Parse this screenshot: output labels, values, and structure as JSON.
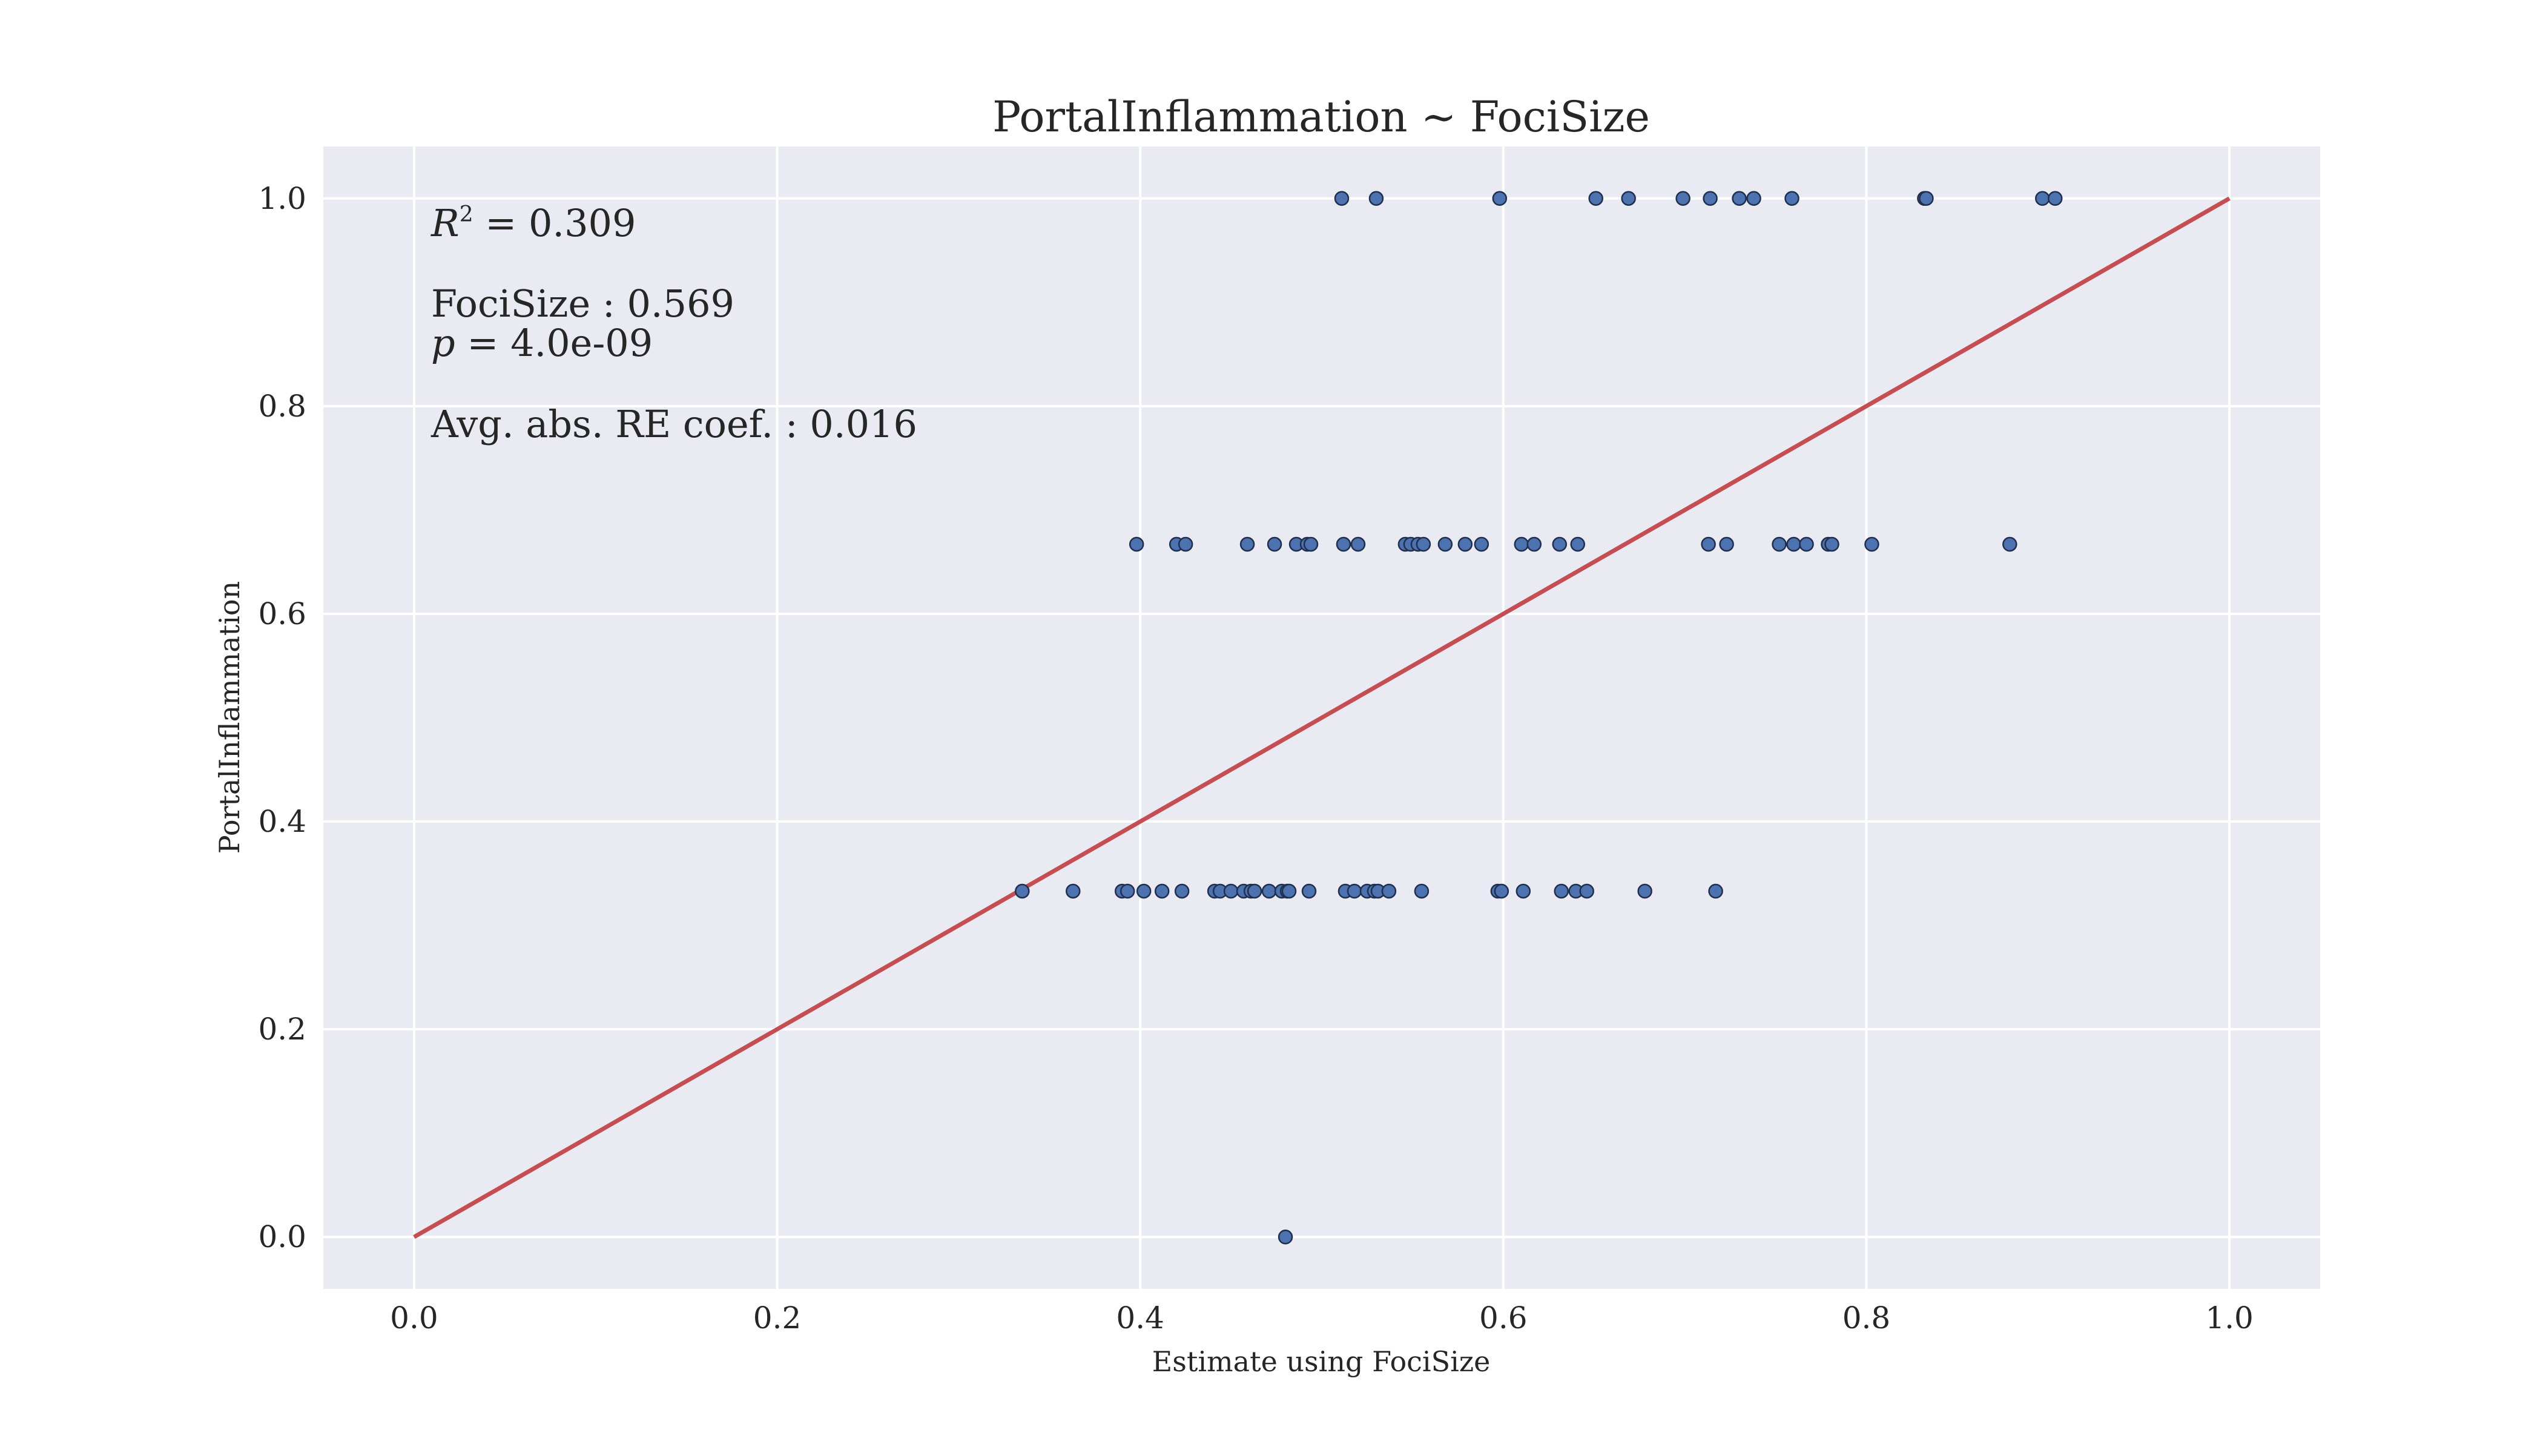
{
  "chart_data": {
    "type": "scatter",
    "title": "PortalInflammation ~ FociSize",
    "xlabel": "Estimate using FociSize",
    "ylabel": "PortalInflammation",
    "xlim": [
      -0.05,
      1.05
    ],
    "ylim": [
      -0.05,
      1.05
    ],
    "xticks": [
      "0.0",
      "0.2",
      "0.4",
      "0.6",
      "0.8",
      "1.0"
    ],
    "yticks": [
      "0.0",
      "0.2",
      "0.4",
      "0.6",
      "0.8",
      "1.0"
    ],
    "grid": true,
    "colors": {
      "background": "#eaeaf2",
      "grid": "#ffffff",
      "points": "#4c72b0",
      "line": "#c44e52"
    },
    "reference_line": {
      "x": [
        0.0,
        1.0
      ],
      "y": [
        0.0,
        1.0
      ]
    },
    "annotations": {
      "r2_label": "R",
      "r2_sup": "2",
      "r2_value": " = 0.309",
      "coef_line": "FociSize : 0.569",
      "p_label": "p",
      "p_value": " = 4.0e-09",
      "re_line": "Avg. abs. RE coef. : 0.016"
    },
    "series": [
      {
        "x": [
          0.48,
          0.335,
          0.363,
          0.39,
          0.393,
          0.402,
          0.412,
          0.423,
          0.441,
          0.444,
          0.45,
          0.457,
          0.461,
          0.463,
          0.471,
          0.478,
          0.481,
          0.482,
          0.493,
          0.513,
          0.518,
          0.525,
          0.529,
          0.531,
          0.537,
          0.555,
          0.597,
          0.599,
          0.611,
          0.632,
          0.64,
          0.646,
          0.678,
          0.717,
          0.398,
          0.42,
          0.425,
          0.459,
          0.474,
          0.486,
          0.492,
          0.494,
          0.512,
          0.52,
          0.546,
          0.549,
          0.553,
          0.556,
          0.568,
          0.579,
          0.588,
          0.61,
          0.617,
          0.631,
          0.641,
          0.713,
          0.723,
          0.752,
          0.76,
          0.767,
          0.779,
          0.781,
          0.803,
          0.879,
          0.511,
          0.53,
          0.598,
          0.651,
          0.669,
          0.699,
          0.714,
          0.73,
          0.738,
          0.759,
          0.832,
          0.833,
          0.897,
          0.904
        ],
        "y": [
          0.0,
          0.333,
          0.333,
          0.333,
          0.333,
          0.333,
          0.333,
          0.333,
          0.333,
          0.333,
          0.333,
          0.333,
          0.333,
          0.333,
          0.333,
          0.333,
          0.333,
          0.333,
          0.333,
          0.333,
          0.333,
          0.333,
          0.333,
          0.333,
          0.333,
          0.333,
          0.333,
          0.333,
          0.333,
          0.333,
          0.333,
          0.333,
          0.333,
          0.333,
          0.667,
          0.667,
          0.667,
          0.667,
          0.667,
          0.667,
          0.667,
          0.667,
          0.667,
          0.667,
          0.667,
          0.667,
          0.667,
          0.667,
          0.667,
          0.667,
          0.667,
          0.667,
          0.667,
          0.667,
          0.667,
          0.667,
          0.667,
          0.667,
          0.667,
          0.667,
          0.667,
          0.667,
          0.667,
          0.667,
          1.0,
          1.0,
          1.0,
          1.0,
          1.0,
          1.0,
          1.0,
          1.0,
          1.0,
          1.0,
          1.0,
          1.0,
          1.0,
          1.0
        ]
      }
    ]
  }
}
